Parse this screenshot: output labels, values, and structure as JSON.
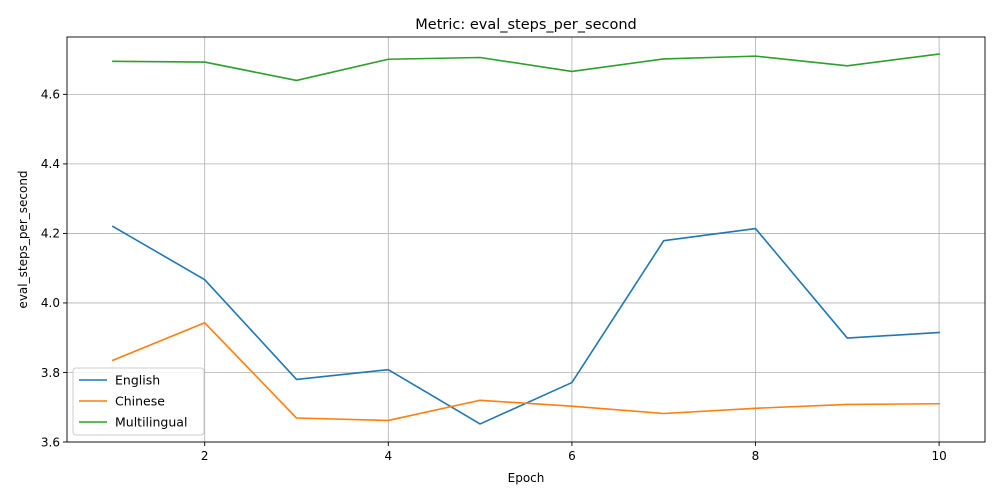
{
  "chart_data": {
    "type": "line",
    "title": "Metric: eval_steps_per_second",
    "xlabel": "Epoch",
    "ylabel": "eval_steps_per_second",
    "x": [
      1,
      2,
      3,
      4,
      5,
      6,
      7,
      8,
      9,
      10
    ],
    "xlim": [
      0.5,
      10.5
    ],
    "ylim": [
      3.6,
      4.765
    ],
    "xticks": [
      2,
      4,
      6,
      8,
      10
    ],
    "yticks": [
      3.6,
      3.8,
      4.0,
      4.2,
      4.4,
      4.6
    ],
    "xtick_labels": [
      "2",
      "4",
      "6",
      "8",
      "10"
    ],
    "ytick_labels": [
      "3.6",
      "3.8",
      "4.0",
      "4.2",
      "4.4",
      "4.6"
    ],
    "grid": true,
    "legend_position": "lower-left",
    "series": [
      {
        "name": "English",
        "color": "#1f77b4",
        "values": [
          4.22,
          4.067,
          3.78,
          3.808,
          3.652,
          3.771,
          4.179,
          4.214,
          3.899,
          3.915
        ]
      },
      {
        "name": "Chinese",
        "color": "#ff7f0e",
        "values": [
          3.835,
          3.943,
          3.669,
          3.662,
          3.72,
          3.703,
          3.682,
          3.697,
          3.708,
          3.71
        ]
      },
      {
        "name": "Multilingual",
        "color": "#2ca02c",
        "values": [
          4.695,
          4.693,
          4.64,
          4.701,
          4.706,
          4.666,
          4.702,
          4.71,
          4.682,
          4.716
        ]
      }
    ]
  }
}
